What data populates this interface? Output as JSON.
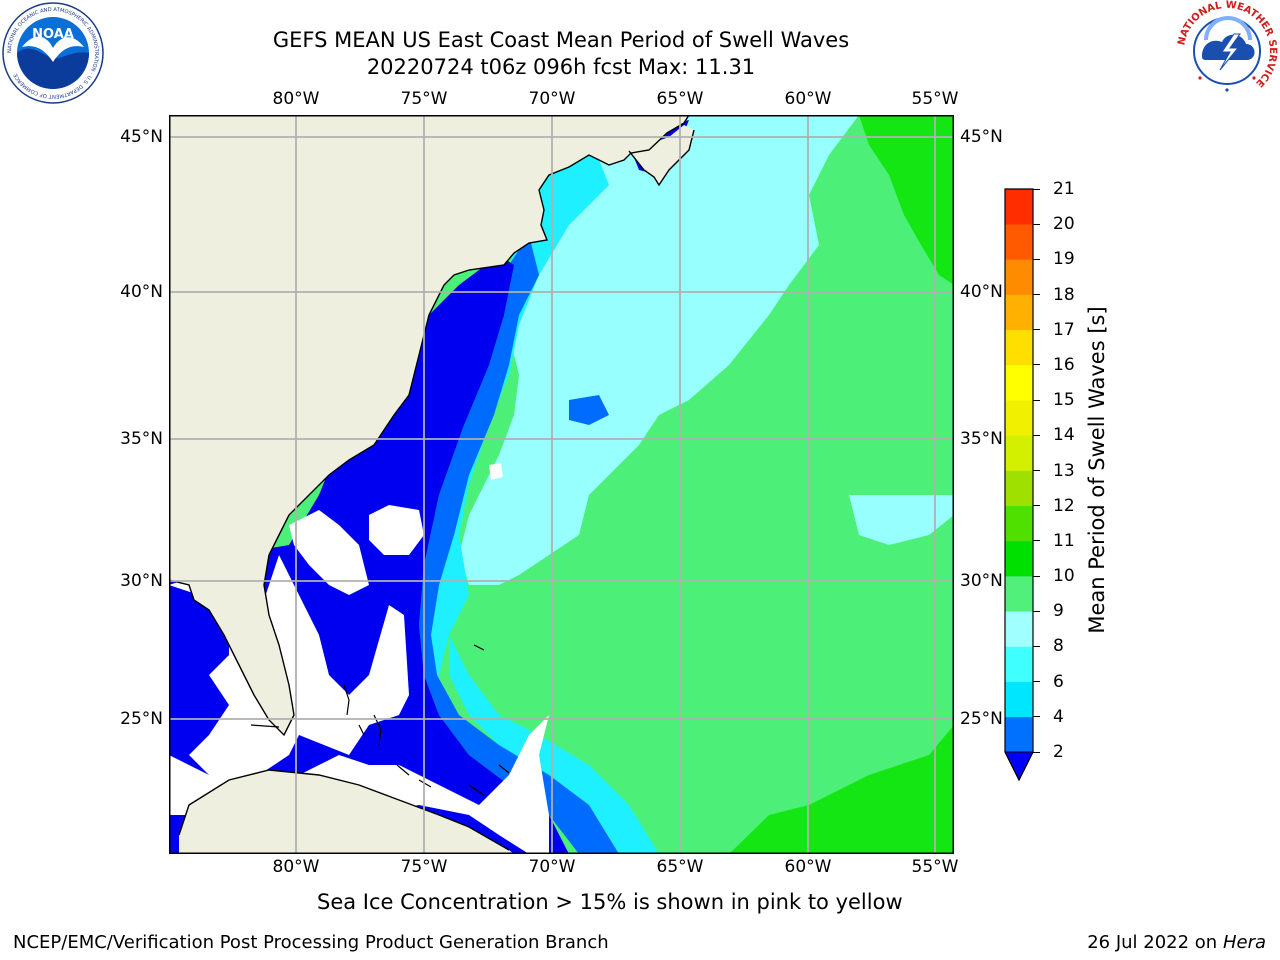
{
  "header": {
    "title_line1": "GEFS MEAN US East Coast Mean Period of Swell Waves",
    "title_line2": "20220724 t06z 096h fcst   Max: 11.31"
  },
  "map": {
    "lon_labels": [
      "80°W",
      "75°W",
      "70°W",
      "65°W",
      "60°W",
      "55°W"
    ],
    "lat_labels": [
      "45°N",
      "40°N",
      "35°N",
      "30°N",
      "25°N"
    ],
    "colors": {
      "land": "#efefdf",
      "coastline": "#000000",
      "grid": "#b0b0b0",
      "no_data": "#ffffff",
      "deep_blue": "#0000f0",
      "blue": "#006cff",
      "cyan": "#1ef0ff",
      "light_cyan": "#98ffff",
      "green": "#4cf078",
      "bright_green": "#14e614"
    }
  },
  "colorbar": {
    "label": "Mean Period of Swell Waves [s]",
    "levels": [
      "2",
      "4",
      "6",
      "8",
      "9",
      "10",
      "11",
      "12",
      "13",
      "14",
      "15",
      "16",
      "17",
      "18",
      "19",
      "20",
      "21"
    ],
    "colors": [
      "#0070ff",
      "#00e6ff",
      "#40ffff",
      "#a0ffff",
      "#50f07a",
      "#00e000",
      "#50e000",
      "#a0e000",
      "#d2f000",
      "#f0f000",
      "#ffff00",
      "#ffdf00",
      "#ffb000",
      "#ff8c00",
      "#ff5a00",
      "#ff2d00",
      "#ff0000"
    ],
    "under_color": "#0000ff"
  },
  "note": "Sea Ice Concentration > 15% is shown in pink to yellow",
  "footer": {
    "left": "NCEP/EMC/Verification Post Processing Product Generation Branch",
    "date": "26 Jul 2022 on ",
    "machine": "Hera"
  },
  "logos": {
    "noaa_text": "NOAA",
    "noaa_ring": "NATIONAL OCEANIC AND ATMOSPHERIC ADMINISTRATION · U.S. DEPARTMENT OF COMMERCE",
    "nws_ring": "NATIONAL WEATHER SERVICE"
  }
}
